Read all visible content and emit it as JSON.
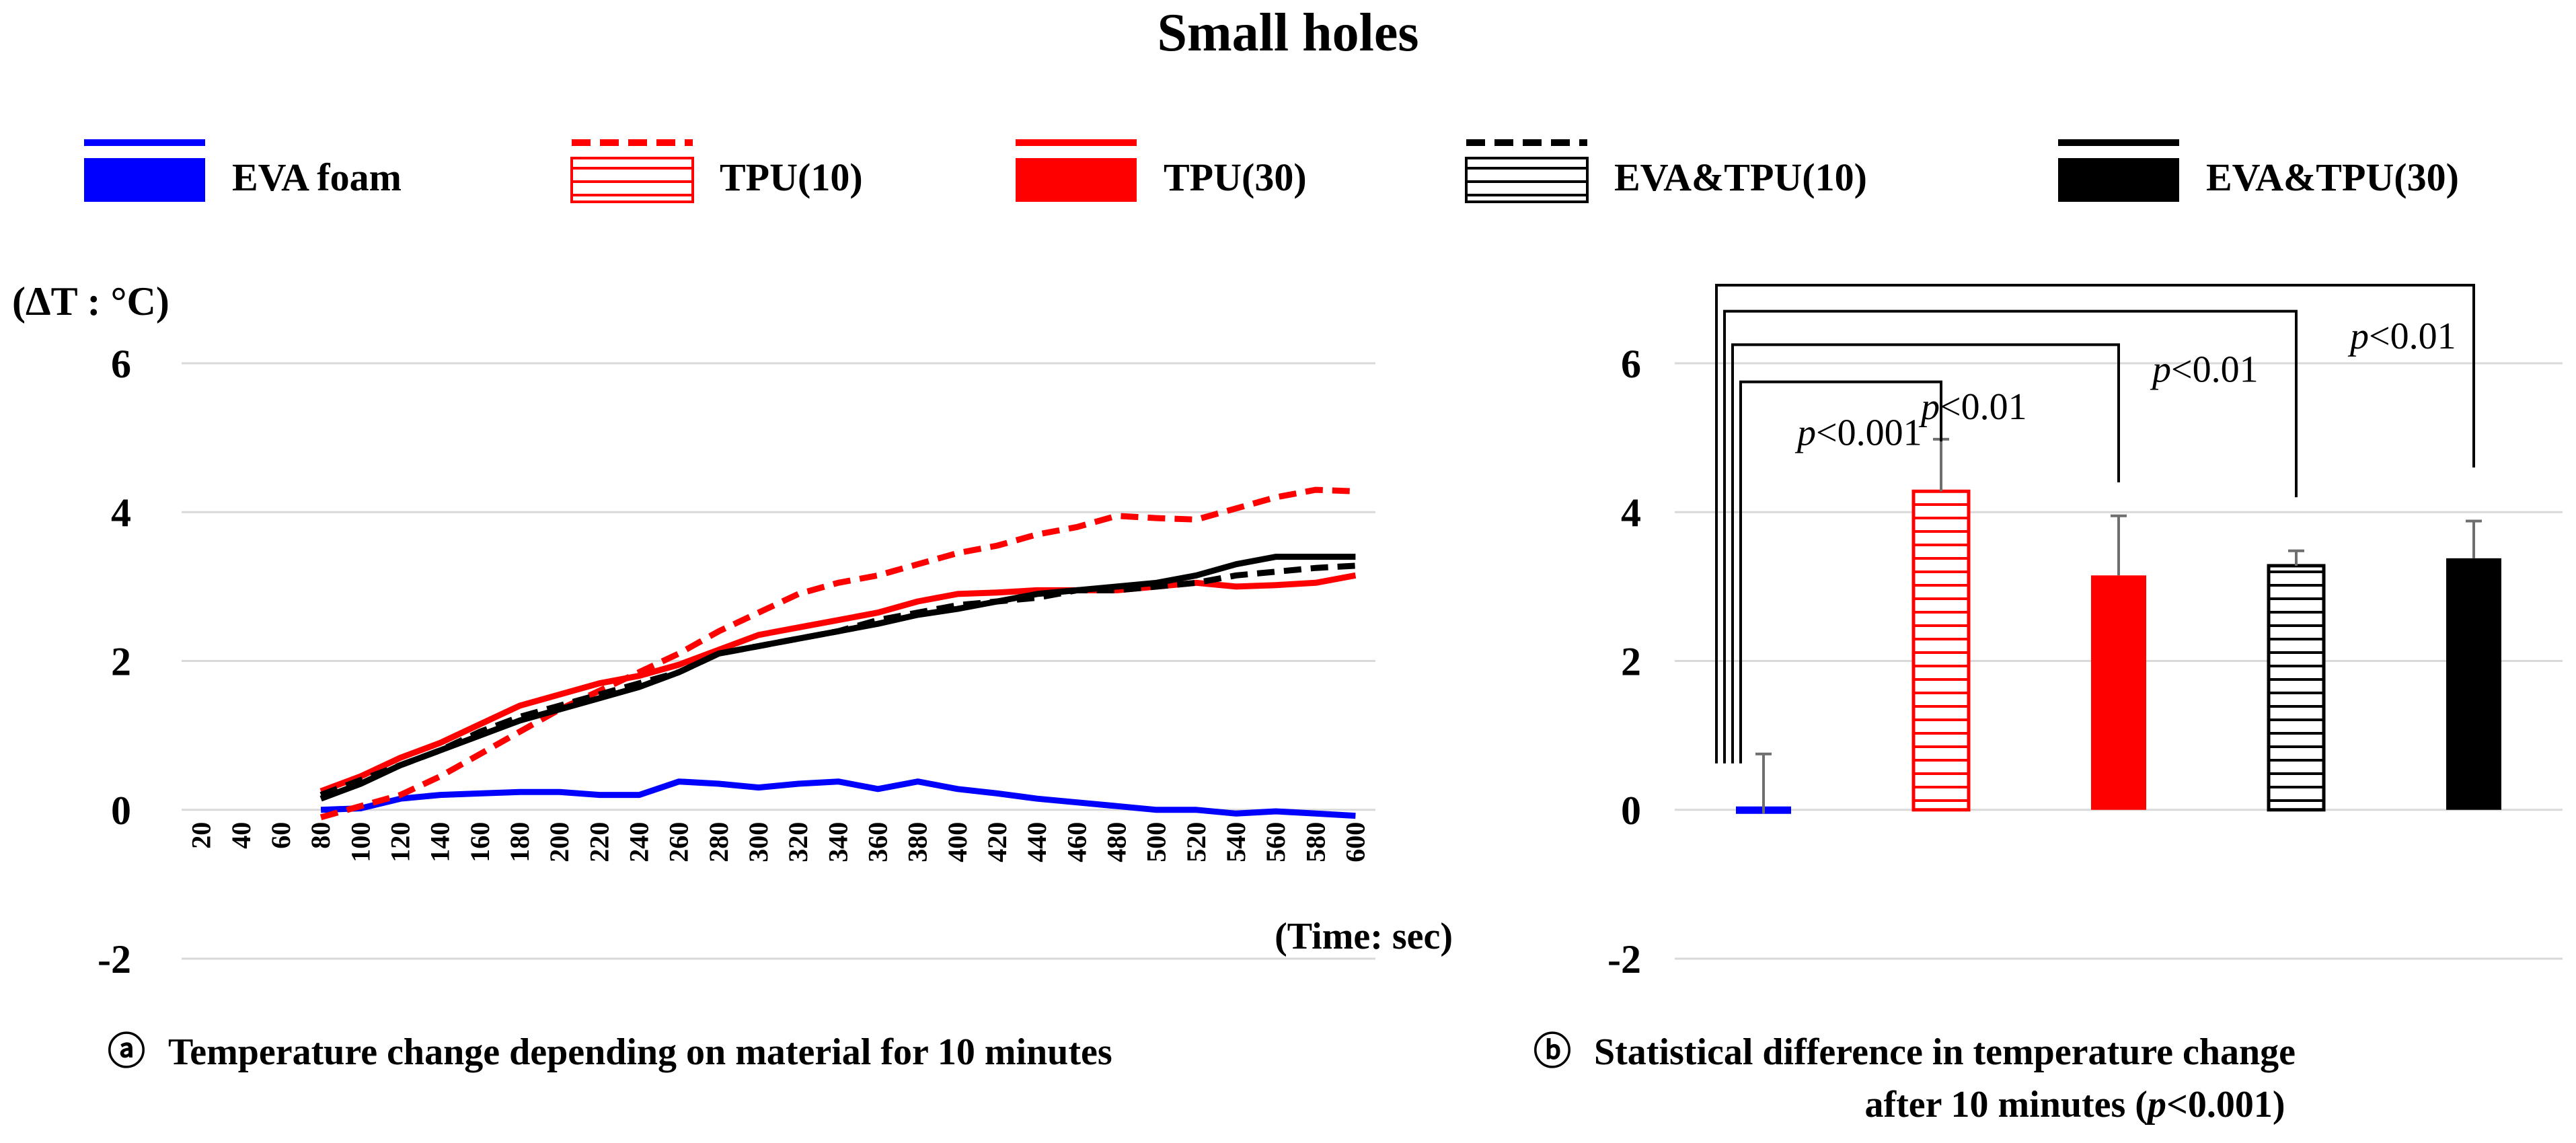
{
  "title": "Small holes",
  "legend": [
    {
      "label": "EVA foam",
      "color": "#0000ff",
      "line": "solid",
      "bar": "solid"
    },
    {
      "label": "TPU(10)",
      "color": "#ff0000",
      "line": "dashed",
      "bar": "hatched"
    },
    {
      "label": "TPU(30)",
      "color": "#ff0000",
      "line": "solid",
      "bar": "solid"
    },
    {
      "label": "EVA&TPU(10)",
      "color": "#000000",
      "line": "dashed",
      "bar": "hatched"
    },
    {
      "label": "EVA&TPU(30)",
      "color": "#000000",
      "line": "solid",
      "bar": "solid"
    }
  ],
  "chart_data": [
    {
      "type": "line",
      "title": "Temperature change depending on material for 10 minutes",
      "caption_marker": "ⓐ",
      "ylabel": "(ΔT : °C)",
      "xlabel": "(Time: sec)",
      "ylim": [
        -2,
        6
      ],
      "yticks": [
        "-2",
        "0",
        "2",
        "4",
        "6"
      ],
      "x": [
        20,
        40,
        60,
        80,
        100,
        120,
        140,
        160,
        180,
        200,
        220,
        240,
        260,
        280,
        300,
        320,
        340,
        360,
        380,
        400,
        420,
        440,
        460,
        480,
        500,
        520,
        540,
        560,
        580,
        600
      ],
      "x_tick_labels": [
        "20",
        "40",
        "60",
        "80",
        "100",
        "120",
        "140",
        "160",
        "180",
        "200",
        "220",
        "240",
        "260",
        "280",
        "300",
        "320",
        "340",
        "360",
        "380",
        "400",
        "420",
        "440",
        "460",
        "480",
        "500",
        "520",
        "540",
        "560",
        "580",
        "600"
      ],
      "series": [
        {
          "name": "EVA foam",
          "color": "#0000ff",
          "dash": "solid",
          "values": [
            null,
            null,
            null,
            0.0,
            0.02,
            0.15,
            0.2,
            0.22,
            0.24,
            0.24,
            0.2,
            0.2,
            0.38,
            0.35,
            0.3,
            0.35,
            0.38,
            0.28,
            0.38,
            0.28,
            0.22,
            0.15,
            0.1,
            0.05,
            0.0,
            0.0,
            -0.05,
            -0.02,
            -0.05,
            -0.08
          ]
        },
        {
          "name": "TPU(10)",
          "color": "#ff0000",
          "dash": "dashed",
          "values": [
            null,
            null,
            null,
            -0.1,
            0.05,
            0.2,
            0.45,
            0.75,
            1.05,
            1.35,
            1.6,
            1.85,
            2.1,
            2.4,
            2.65,
            2.9,
            3.05,
            3.15,
            3.3,
            3.45,
            3.55,
            3.7,
            3.8,
            3.95,
            3.92,
            3.9,
            4.05,
            4.2,
            4.3,
            4.28
          ]
        },
        {
          "name": "TPU(30)",
          "color": "#ff0000",
          "dash": "solid",
          "values": [
            null,
            null,
            null,
            0.25,
            0.45,
            0.7,
            0.9,
            1.15,
            1.4,
            1.55,
            1.7,
            1.8,
            1.95,
            2.15,
            2.35,
            2.45,
            2.55,
            2.65,
            2.8,
            2.9,
            2.92,
            2.95,
            2.95,
            2.95,
            3.0,
            3.05,
            3.0,
            3.02,
            3.05,
            3.15
          ]
        },
        {
          "name": "EVA&TPU(10)",
          "color": "#000000",
          "dash": "dashed",
          "values": [
            null,
            null,
            null,
            0.2,
            0.4,
            0.6,
            0.8,
            1.05,
            1.25,
            1.4,
            1.55,
            1.7,
            1.85,
            2.1,
            2.2,
            2.3,
            2.4,
            2.55,
            2.65,
            2.75,
            2.8,
            2.85,
            2.95,
            2.95,
            3.0,
            3.05,
            3.15,
            3.2,
            3.25,
            3.28
          ]
        },
        {
          "name": "EVA&TPU(30)",
          "color": "#000000",
          "dash": "solid",
          "values": [
            null,
            null,
            null,
            0.15,
            0.35,
            0.6,
            0.8,
            1.0,
            1.2,
            1.35,
            1.5,
            1.65,
            1.85,
            2.1,
            2.2,
            2.3,
            2.4,
            2.5,
            2.62,
            2.7,
            2.8,
            2.9,
            2.95,
            3.0,
            3.05,
            3.15,
            3.3,
            3.4,
            3.4,
            3.4
          ]
        }
      ]
    },
    {
      "type": "bar",
      "title": "Statistical difference in temperature change",
      "title_line2_prefix": "after 10 minutes (",
      "title_line2_p": "p",
      "title_line2_suffix": "<0.001)",
      "caption_marker": "ⓑ",
      "ylim": [
        -2,
        6
      ],
      "yticks": [
        "-2",
        "0",
        "2",
        "4",
        "6"
      ],
      "categories": [
        "EVA foam",
        "TPU(10)",
        "TPU(30)",
        "EVA&TPU(10)",
        "EVA&TPU(30)"
      ],
      "values": [
        -0.05,
        4.28,
        3.15,
        3.28,
        3.38
      ],
      "errors": [
        0.8,
        0.7,
        0.8,
        0.2,
        0.5
      ],
      "colors": [
        "#0000ff",
        "#ff0000",
        "#ff0000",
        "#000000",
        "#000000"
      ],
      "patterns": [
        "solid",
        "hatched",
        "solid",
        "hatched",
        "solid"
      ],
      "significance": [
        {
          "from": "EVA foam",
          "to": "TPU(10)",
          "label_p": "p",
          "label_rest": "<0.001"
        },
        {
          "from": "EVA foam",
          "to": "TPU(30)",
          "label_p": "p",
          "label_rest": "<0.01"
        },
        {
          "from": "EVA foam",
          "to": "EVA&TPU(10)",
          "label_p": "p",
          "label_rest": "<0.01"
        },
        {
          "from": "EVA foam",
          "to": "EVA&TPU(30)",
          "label_p": "p",
          "label_rest": "<0.01"
        }
      ]
    }
  ]
}
